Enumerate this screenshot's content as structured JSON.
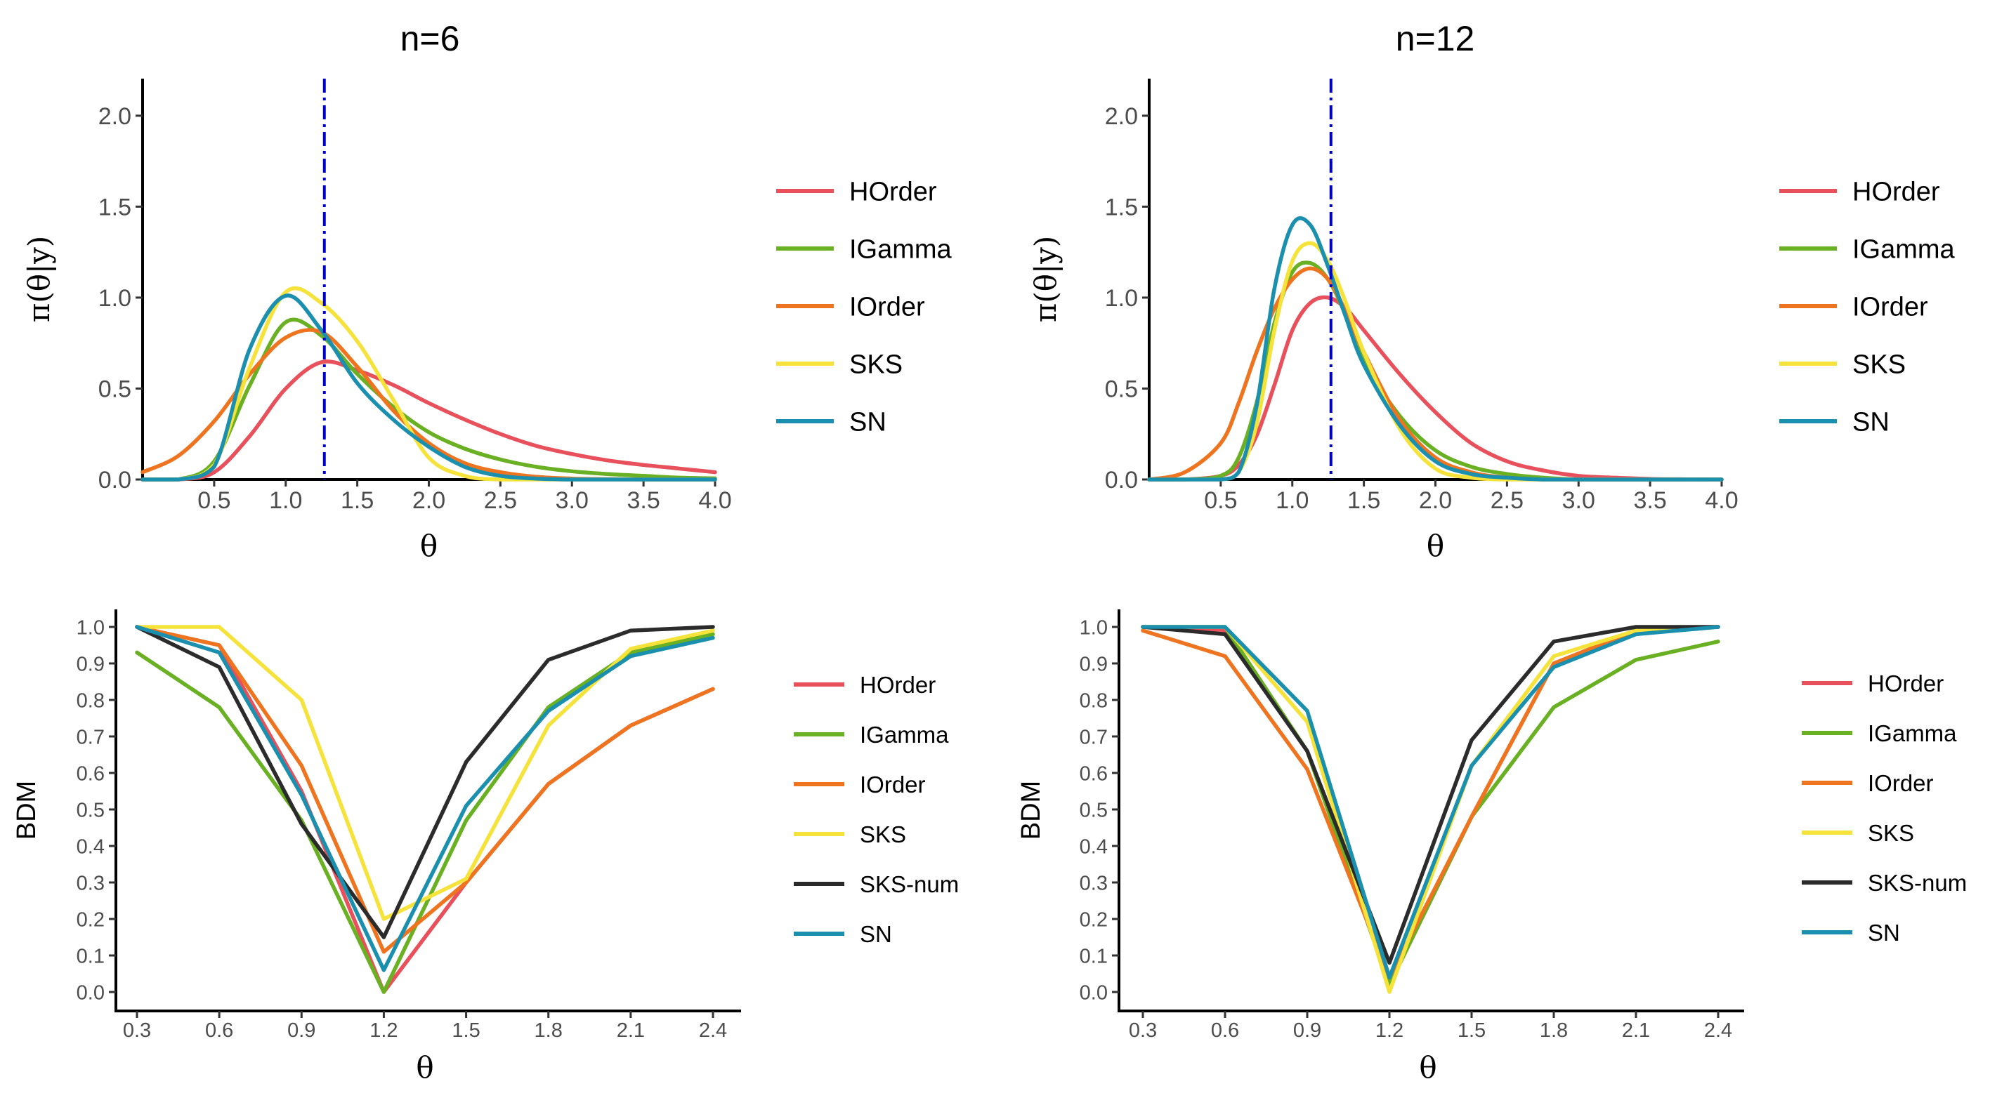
{
  "colors": {
    "HOrder": "#E8505B",
    "IGamma": "#6AB023",
    "IOrder": "#EE7420",
    "SKS": "#F5E33C",
    "SKS-num": "#2B2B2B",
    "SN": "#1A8FAE",
    "vline": "#0000CC"
  },
  "chart_data": [
    {
      "id": "p1",
      "type": "line",
      "title": "n=6",
      "xlabel": "θ",
      "ylabel": "π(θ|y)",
      "xlim": [
        0,
        4.0
      ],
      "ylim": [
        0,
        2.2
      ],
      "xticks": [
        0.5,
        1.0,
        1.5,
        2.0,
        2.5,
        3.0,
        3.5,
        4.0
      ],
      "xtick_labels": [
        "0.5",
        "1.0",
        "1.5",
        "2.0",
        "2.5",
        "3.0",
        "3.5",
        "4.0"
      ],
      "yticks": [
        0,
        0.5,
        1.0,
        1.5,
        2.0
      ],
      "ytick_labels": [
        "0.0",
        "0.5",
        "1.0",
        "1.5",
        "2.0"
      ],
      "vline": 1.27,
      "legend": [
        "HOrder",
        "IGamma",
        "IOrder",
        "SKS",
        "SN"
      ],
      "x": [
        0.0,
        0.25,
        0.5,
        0.75,
        1.0,
        1.25,
        1.5,
        1.75,
        2.0,
        2.25,
        2.5,
        2.75,
        3.0,
        3.25,
        3.5,
        3.75,
        4.0
      ],
      "series": [
        {
          "name": "HOrder",
          "values": [
            0.0,
            0.0,
            0.04,
            0.24,
            0.5,
            0.645,
            0.6,
            0.52,
            0.42,
            0.33,
            0.25,
            0.185,
            0.14,
            0.105,
            0.08,
            0.06,
            0.04
          ]
        },
        {
          "name": "IGamma",
          "values": [
            0.0,
            0.0,
            0.1,
            0.52,
            0.865,
            0.79,
            0.58,
            0.4,
            0.26,
            0.17,
            0.11,
            0.07,
            0.045,
            0.03,
            0.02,
            0.01,
            0.006
          ]
        },
        {
          "name": "IOrder",
          "values": [
            0.04,
            0.13,
            0.32,
            0.58,
            0.78,
            0.81,
            0.62,
            0.38,
            0.2,
            0.09,
            0.04,
            0.015,
            0.005,
            0.002,
            0.0,
            0.0,
            0.0
          ]
        },
        {
          "name": "SKS",
          "values": [
            0.0,
            0.0,
            0.08,
            0.62,
            1.03,
            0.97,
            0.76,
            0.44,
            0.12,
            0.02,
            0.0,
            0.0,
            0.0,
            0.0,
            0.0,
            0.0,
            0.0
          ]
        },
        {
          "name": "SN",
          "values": [
            0.0,
            0.0,
            0.07,
            0.72,
            1.01,
            0.82,
            0.53,
            0.33,
            0.18,
            0.07,
            0.02,
            0.005,
            0.0,
            0.0,
            0.0,
            0.0,
            0.0
          ]
        }
      ]
    },
    {
      "id": "p2",
      "type": "line",
      "title": "n=12",
      "xlabel": "θ",
      "ylabel": "π(θ|y)",
      "xlim": [
        0,
        4.0
      ],
      "ylim": [
        0,
        2.2
      ],
      "xticks": [
        0.5,
        1.0,
        1.5,
        2.0,
        2.5,
        3.0,
        3.5,
        4.0
      ],
      "xtick_labels": [
        "0.5",
        "1.0",
        "1.5",
        "2.0",
        "2.5",
        "3.0",
        "3.5",
        "4.0"
      ],
      "yticks": [
        0,
        0.5,
        1.0,
        1.5,
        2.0
      ],
      "ytick_labels": [
        "0.0",
        "0.5",
        "1.0",
        "1.5",
        "2.0"
      ],
      "vline": 1.27,
      "legend": [
        "HOrder",
        "IGamma",
        "IOrder",
        "SKS",
        "SN"
      ],
      "x": [
        0.0,
        0.25,
        0.5,
        0.625,
        0.75,
        0.875,
        1.0,
        1.125,
        1.25,
        1.375,
        1.5,
        1.75,
        2.0,
        2.25,
        2.5,
        2.75,
        3.0,
        3.25,
        3.5,
        3.75,
        4.0
      ],
      "series": [
        {
          "name": "HOrder",
          "values": [
            0.0,
            0.0,
            0.02,
            0.08,
            0.24,
            0.52,
            0.82,
            0.97,
            1.0,
            0.94,
            0.82,
            0.58,
            0.37,
            0.2,
            0.1,
            0.05,
            0.02,
            0.01,
            0.003,
            0.001,
            0.0
          ]
        },
        {
          "name": "IGamma",
          "values": [
            0.0,
            0.0,
            0.02,
            0.12,
            0.42,
            0.86,
            1.14,
            1.19,
            1.1,
            0.9,
            0.65,
            0.35,
            0.16,
            0.07,
            0.03,
            0.01,
            0.0,
            0.0,
            0.0,
            0.0,
            0.0
          ]
        },
        {
          "name": "IOrder",
          "values": [
            0.0,
            0.04,
            0.2,
            0.42,
            0.7,
            0.94,
            1.1,
            1.16,
            1.1,
            0.92,
            0.7,
            0.33,
            0.12,
            0.04,
            0.01,
            0.0,
            0.0,
            0.0,
            0.0,
            0.0,
            0.0
          ]
        },
        {
          "name": "SKS",
          "values": [
            0.0,
            0.0,
            0.0,
            0.04,
            0.3,
            0.82,
            1.2,
            1.3,
            1.2,
            0.97,
            0.7,
            0.28,
            0.06,
            0.01,
            0.0,
            0.0,
            0.0,
            0.0,
            0.0,
            0.0,
            0.0
          ]
        },
        {
          "name": "SN",
          "values": [
            0.0,
            0.0,
            0.0,
            0.04,
            0.4,
            1.05,
            1.4,
            1.4,
            1.17,
            0.89,
            0.63,
            0.3,
            0.1,
            0.03,
            0.01,
            0.0,
            0.0,
            0.0,
            0.0,
            0.0,
            0.0
          ]
        }
      ]
    },
    {
      "id": "p3",
      "type": "line",
      "title": "",
      "xlabel": "θ",
      "ylabel": "BDM",
      "xlim": [
        0.3,
        2.4
      ],
      "ylim": [
        0,
        1.0
      ],
      "xticks": [
        0.3,
        0.6,
        0.9,
        1.2,
        1.5,
        1.8,
        2.1,
        2.4
      ],
      "xtick_labels": [
        "0.3",
        "0.6",
        "0.9",
        "1.2",
        "1.5",
        "1.8",
        "2.1",
        "2.4"
      ],
      "yticks": [
        0,
        0.1,
        0.2,
        0.3,
        0.4,
        0.5,
        0.6,
        0.7,
        0.8,
        0.9,
        1.0
      ],
      "ytick_labels": [
        "0.0",
        "0.1",
        "0.2",
        "0.3",
        "0.4",
        "0.5",
        "0.6",
        "0.7",
        "0.8",
        "0.9",
        "1.0"
      ],
      "legend": [
        "HOrder",
        "IGamma",
        "IOrder",
        "SKS",
        "SKS-num",
        "SN"
      ],
      "x": [
        0.3,
        0.6,
        0.9,
        1.2,
        1.5,
        1.8,
        2.1,
        2.4
      ],
      "series": [
        {
          "name": "HOrder",
          "values": [
            1.0,
            0.95,
            0.55,
            0.0,
            0.3,
            0.57,
            0.73,
            0.83
          ]
        },
        {
          "name": "IGamma",
          "values": [
            0.93,
            0.78,
            0.47,
            0.0,
            0.47,
            0.78,
            0.93,
            0.98
          ]
        },
        {
          "name": "IOrder",
          "values": [
            1.0,
            0.95,
            0.62,
            0.11,
            0.3,
            0.57,
            0.73,
            0.83
          ]
        },
        {
          "name": "SKS",
          "values": [
            1.0,
            1.0,
            0.8,
            0.2,
            0.31,
            0.73,
            0.94,
            0.99
          ]
        },
        {
          "name": "SKS-num",
          "values": [
            1.0,
            0.89,
            0.46,
            0.15,
            0.63,
            0.91,
            0.99,
            1.0
          ]
        },
        {
          "name": "SN",
          "values": [
            1.0,
            0.93,
            0.54,
            0.06,
            0.51,
            0.77,
            0.92,
            0.97
          ]
        }
      ]
    },
    {
      "id": "p4",
      "type": "line",
      "title": "",
      "xlabel": "θ",
      "ylabel": "BDM",
      "xlim": [
        0.3,
        2.4
      ],
      "ylim": [
        0,
        1.0
      ],
      "xticks": [
        0.3,
        0.6,
        0.9,
        1.2,
        1.5,
        1.8,
        2.1,
        2.4
      ],
      "xtick_labels": [
        "0.3",
        "0.6",
        "0.9",
        "1.2",
        "1.5",
        "1.8",
        "2.1",
        "2.4"
      ],
      "yticks": [
        0,
        0.1,
        0.2,
        0.3,
        0.4,
        0.5,
        0.6,
        0.7,
        0.8,
        0.9,
        1.0
      ],
      "ytick_labels": [
        "0.0",
        "0.1",
        "0.2",
        "0.3",
        "0.4",
        "0.5",
        "0.6",
        "0.7",
        "0.8",
        "0.9",
        "1.0"
      ],
      "legend": [
        "HOrder",
        "IGamma",
        "IOrder",
        "SKS",
        "SKS-num",
        "SN"
      ],
      "x": [
        0.3,
        0.6,
        0.9,
        1.2,
        1.5,
        1.8,
        2.1,
        2.4
      ],
      "series": [
        {
          "name": "HOrder",
          "values": [
            1.0,
            0.99,
            0.66,
            0.02,
            0.48,
            0.9,
            0.99,
            1.0
          ]
        },
        {
          "name": "IGamma",
          "values": [
            1.0,
            1.0,
            0.66,
            0.02,
            0.48,
            0.78,
            0.91,
            0.96
          ]
        },
        {
          "name": "IOrder",
          "values": [
            0.99,
            0.92,
            0.61,
            0.04,
            0.48,
            0.9,
            0.99,
            1.0
          ]
        },
        {
          "name": "SKS",
          "values": [
            1.0,
            1.0,
            0.74,
            0.0,
            0.62,
            0.92,
            0.99,
            1.0
          ]
        },
        {
          "name": "SKS-num",
          "values": [
            1.0,
            0.98,
            0.66,
            0.08,
            0.69,
            0.96,
            1.0,
            1.0
          ]
        },
        {
          "name": "SN",
          "values": [
            1.0,
            1.0,
            0.77,
            0.04,
            0.62,
            0.89,
            0.98,
            1.0
          ]
        }
      ]
    }
  ]
}
